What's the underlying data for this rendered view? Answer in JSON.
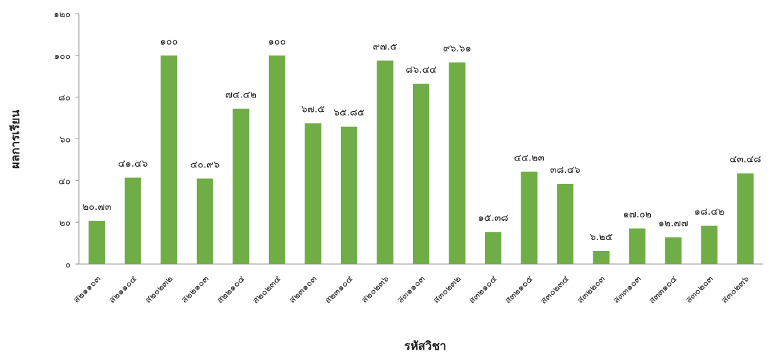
{
  "chart_data": {
    "type": "bar",
    "xlabel": "รหัสวิชา",
    "ylabel": "ผลการเรียน",
    "ylim": [
      0,
      120
    ],
    "grid": false,
    "legend": "none",
    "bar_color": "#70ad47",
    "y_ticks": [
      "๐",
      "๒๐",
      "๔๐",
      "๖๐",
      "๘๐",
      "๑๐๐",
      "๑๒๐"
    ],
    "categories": [
      "ส๒๑๑๐๓",
      "ส๒๑๑๐๔",
      "ส๒๐๒๓๒",
      "ส๒๒๑๐๓",
      "ส๒๒๑๐๔",
      "ส๒๐๒๓๔",
      "ส๒๓๑๐๓",
      "ส๒๓๑๐๔",
      "ส๒๐๒๓๖",
      "ส๓๑๑๐๓",
      "ส๓๐๒๓๒",
      "ส๓๒๑๐๔",
      "ส๓๒๑๐๕",
      "ส๓๐๒๓๔",
      "ส๓๒๒๐๓",
      "ส๓๓๑๐๓",
      "ส๓๓๑๐๔",
      "ส๓๐๒๐๓",
      "ส๓๐๒๓๖"
    ],
    "values": [
      20.73,
      41.46,
      100,
      40.96,
      74.42,
      100,
      67.5,
      65.85,
      97.5,
      86.44,
      96.61,
      15.38,
      44.23,
      38.46,
      6.25,
      17.02,
      12.77,
      18.42,
      43.48
    ],
    "value_labels": [
      "๒๐.๗๓",
      "๔๑.๔๖",
      "๑๐๐",
      "๔๐.๙๖",
      "๗๔.๔๒",
      "๑๐๐",
      "๖๗.๕",
      "๖๕.๘๕",
      "๙๗.๕",
      "๘๖.๔๔",
      "๙๖.๖๑",
      "๑๕.๓๘",
      "๔๔.๒๓",
      "๓๘.๔๖",
      "๖.๒๕",
      "๑๗.๐๒",
      "๑๒.๗๗",
      "๑๘.๔๒",
      "๔๓.๔๘"
    ]
  }
}
